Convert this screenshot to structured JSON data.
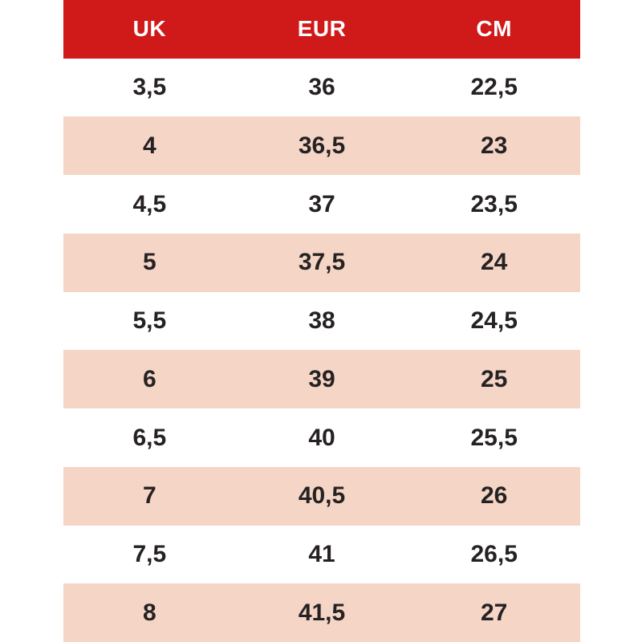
{
  "colors": {
    "header_bg": "#d01919",
    "header_text": "#ffffff",
    "row_pink": "#f5d6c6",
    "row_white": "#ffffff",
    "text": "#262223"
  },
  "chart_data": {
    "type": "table",
    "title": "",
    "columns": [
      "UK",
      "EUR",
      "CM"
    ],
    "rows": [
      [
        "3,5",
        "36",
        "22,5"
      ],
      [
        "4",
        "36,5",
        "23"
      ],
      [
        "4,5",
        "37",
        "23,5"
      ],
      [
        "5",
        "37,5",
        "24"
      ],
      [
        "5,5",
        "38",
        "24,5"
      ],
      [
        "6",
        "39",
        "25"
      ],
      [
        "6,5",
        "40",
        "25,5"
      ],
      [
        "7",
        "40,5",
        "26"
      ],
      [
        "7,5",
        "41",
        "26,5"
      ],
      [
        "8",
        "41,5",
        "27"
      ]
    ]
  }
}
